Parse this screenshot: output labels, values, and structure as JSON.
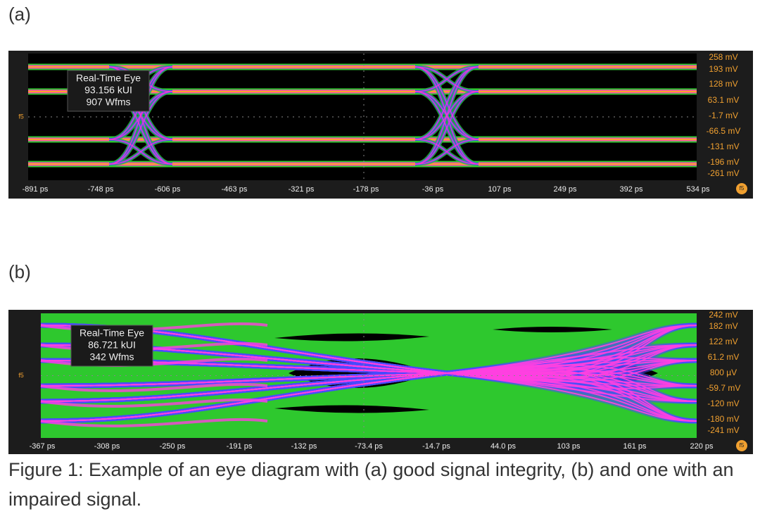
{
  "panels": [
    {
      "label": "(a)",
      "info": [
        "Real-Time Eye",
        "93.156 kUI",
        "907 Wfms"
      ],
      "y_labels": [
        "258 mV",
        "193 mV",
        "128 mV",
        "63.1 mV",
        "-1.7 mV",
        "-66.5 mV",
        "-131 mV",
        "-196 mV",
        "-261 mV"
      ],
      "x_labels": [
        "-891 ps",
        "-748 ps",
        "-606 ps",
        "-463 ps",
        "-321 ps",
        "-178 ps",
        "-36 ps",
        "107 ps",
        "249 ps",
        "392 ps",
        "534 ps"
      ],
      "marker": "f5"
    },
    {
      "label": "(b)",
      "info": [
        "Real-Time Eye",
        "86.721 kUI",
        "342 Wfms"
      ],
      "y_labels": [
        "242 mV",
        "182 mV",
        "122 mV",
        "61.2 mV",
        "800 µV",
        "-59.7 mV",
        "-120 mV",
        "-180 mV",
        "-241 mV"
      ],
      "x_labels": [
        "-367 ps",
        "-308 ps",
        "-250 ps",
        "-191 ps",
        "-132 ps",
        "-73.4 ps",
        "-14.7 ps",
        "44.0 ps",
        "103 ps",
        "161 ps",
        "220 ps"
      ],
      "marker": "f5"
    }
  ],
  "caption": "Figure 1: Example of an eye diagram with (a) good signal integrity, (b) and one with an impaired signal."
}
